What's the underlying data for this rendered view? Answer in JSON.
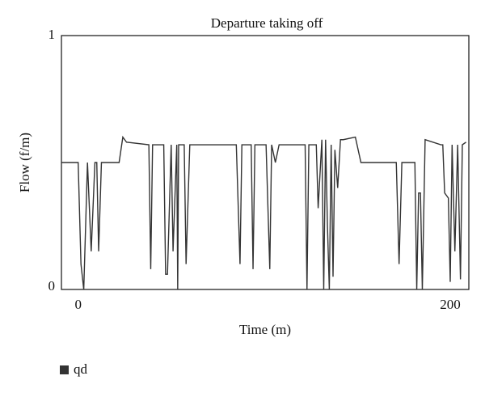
{
  "chart_data": {
    "type": "line",
    "title": "Departure taking off",
    "x_label": "Time (m)",
    "y_label": "Flow (f/m)",
    "x": [
      -9,
      0,
      1.5,
      3,
      5,
      7,
      9,
      10,
      11,
      12.5,
      22,
      24,
      26,
      38,
      39,
      40,
      46,
      47,
      48,
      50,
      51,
      53,
      53.5,
      54,
      57,
      58,
      60,
      85,
      87,
      88,
      93,
      94,
      95,
      101,
      103,
      104,
      106,
      108,
      122,
      123,
      124,
      128,
      129,
      131,
      132,
      133,
      134,
      135,
      136,
      137,
      138,
      139.5,
      141,
      142.5,
      149,
      152,
      171,
      172.5,
      174,
      181,
      182,
      183,
      184,
      185,
      186.5,
      195,
      196,
      197,
      199,
      200,
      201,
      202.5,
      204,
      205.5,
      206.5,
      208.5
    ],
    "series": [
      {
        "name": "qd",
        "color": "#333333",
        "values": [
          0.5,
          0.5,
          0.1,
          0,
          0.5,
          0.15,
          0.5,
          0.5,
          0.15,
          0.5,
          0.5,
          0.6,
          0.58,
          0.57,
          0.08,
          0.57,
          0.57,
          0.06,
          0.06,
          0.57,
          0.15,
          0.57,
          0,
          0.57,
          0.57,
          0.1,
          0.57,
          0.57,
          0.1,
          0.57,
          0.57,
          0.08,
          0.57,
          0.57,
          0.08,
          0.57,
          0.5,
          0.57,
          0.57,
          0,
          0.57,
          0.57,
          0.32,
          0.59,
          0,
          0.59,
          0.25,
          0,
          0.57,
          0.05,
          0.55,
          0.4,
          0.59,
          0.59,
          0.6,
          0.5,
          0.5,
          0.1,
          0.5,
          0.5,
          0,
          0.38,
          0.38,
          0,
          0.59,
          0.57,
          0.57,
          0.38,
          0.36,
          0.03,
          0.57,
          0.15,
          0.57,
          0.04,
          0.57,
          0.58
        ]
      }
    ],
    "xlim": [
      -9,
      210
    ],
    "ylim": [
      0,
      1
    ],
    "xticks": [
      0,
      200
    ],
    "yticks": [
      0,
      1
    ]
  }
}
